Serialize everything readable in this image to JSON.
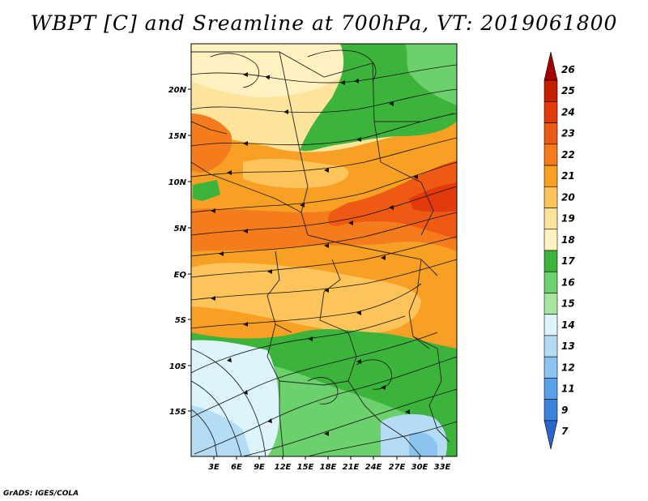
{
  "title": "WBPT [C] and Sreamline at 700hPa, VT: 2019061800",
  "credit": "GrADS: IGES/COLA",
  "map": {
    "variable": "Wet-bulb potential temperature",
    "units": "C",
    "level": "700hPa",
    "valid_time": "2019061800",
    "x_ticks": [
      "3E",
      "6E",
      "9E",
      "12E",
      "15E",
      "18E",
      "21E",
      "24E",
      "27E",
      "30E",
      "33E"
    ],
    "y_ticks": [
      "20N",
      "15N",
      "10N",
      "5N",
      "EQ",
      "5S",
      "10S",
      "15S"
    ]
  },
  "colorbar": {
    "levels": [
      "26",
      "25",
      "24",
      "23",
      "22",
      "21",
      "20",
      "19",
      "18",
      "17",
      "16",
      "15",
      "14",
      "13",
      "12",
      "11",
      "9",
      "7"
    ],
    "colors": [
      "#a50000",
      "#c81e00",
      "#e23a0c",
      "#ee5a14",
      "#f47c1c",
      "#f7a024",
      "#fcc45a",
      "#fde49c",
      "#fff2c0",
      "#3cb43c",
      "#6cd06c",
      "#a8e6a0",
      "#dcf4fa",
      "#b4dcf4",
      "#8cc4f0",
      "#5aa0e6",
      "#3c82dc",
      "#2a64cc"
    ]
  }
}
